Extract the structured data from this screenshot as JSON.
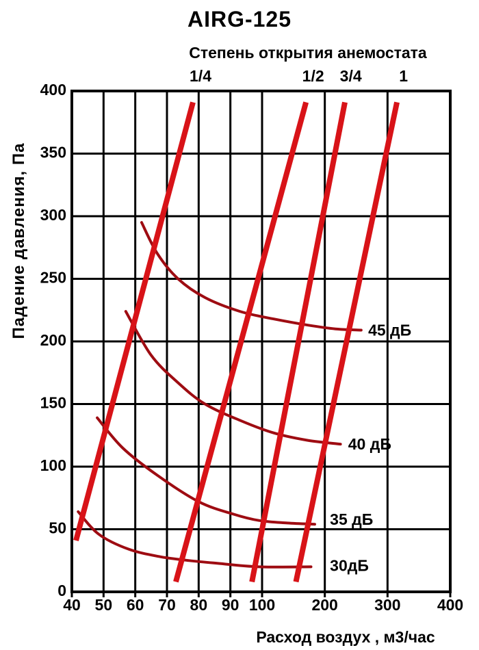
{
  "title": "AIRG-125",
  "top_axis": {
    "title": "Степень открытия анемостата",
    "ticks": [
      {
        "label": "1/4",
        "flow": 79.5
      },
      {
        "label": "1/2",
        "flow": 176
      },
      {
        "label": "3/4",
        "flow": 236
      },
      {
        "label": "1",
        "flow": 320
      }
    ]
  },
  "x_axis": {
    "title": "Расход воздух , м3/час",
    "ticks": [
      40,
      50,
      60,
      70,
      80,
      90,
      100,
      200,
      300,
      400
    ]
  },
  "y_axis": {
    "title": "Падение давления, Па",
    "ticks": [
      0,
      50,
      100,
      150,
      200,
      250,
      300,
      350,
      400
    ]
  },
  "chart_data": {
    "type": "line",
    "title": "AIRG-125",
    "xlabel": "Расход воздух , м3/час",
    "ylabel": "Падение давления, Па",
    "top_label": "Степень открытия анемостата",
    "xlim": [
      40,
      400
    ],
    "ylim": [
      0,
      400
    ],
    "grid": true,
    "x_scale": "piecewise-linear pseudo-log: 40-100 by 10, 100-400 by 100",
    "x_ticks": [
      40,
      50,
      60,
      70,
      80,
      90,
      100,
      200,
      300,
      400
    ],
    "y_ticks": [
      0,
      50,
      100,
      150,
      200,
      250,
      300,
      350,
      400
    ],
    "opening_lines": [
      {
        "name": "1/4",
        "points": [
          [
            41.3,
            41
          ],
          [
            78.2,
            391
          ]
        ]
      },
      {
        "name": "1/2",
        "points": [
          [
            72.8,
            8
          ],
          [
            170,
            391
          ]
        ]
      },
      {
        "name": "3/4",
        "points": [
          [
            96.8,
            8
          ],
          [
            232,
            391
          ]
        ]
      },
      {
        "name": "1",
        "points": [
          [
            154,
            8
          ],
          [
            315,
            391
          ]
        ]
      }
    ],
    "noise_curves": [
      {
        "name": "45 дБ",
        "label_at": [
          267,
          208
        ],
        "points": [
          [
            62,
            295
          ],
          [
            67,
            270
          ],
          [
            73.5,
            250
          ],
          [
            82,
            235
          ],
          [
            93,
            224
          ],
          [
            118,
            218
          ],
          [
            173,
            213
          ],
          [
            217,
            210
          ],
          [
            258,
            209
          ]
        ]
      },
      {
        "name": "40 дБ",
        "label_at": [
          235,
          117
        ],
        "points": [
          [
            57,
            224
          ],
          [
            65,
            189
          ],
          [
            73.5,
            167
          ],
          [
            82,
            150
          ],
          [
            93,
            137
          ],
          [
            118,
            127
          ],
          [
            173,
            121
          ],
          [
            225,
            118
          ]
        ]
      },
      {
        "name": "35 дБ",
        "label_at": [
          206,
          57
        ],
        "points": [
          [
            48,
            139
          ],
          [
            56,
            115
          ],
          [
            67,
            93
          ],
          [
            80,
            72
          ],
          [
            91,
            62
          ],
          [
            99,
            57
          ],
          [
            140,
            55
          ],
          [
            184,
            54
          ]
        ]
      },
      {
        "name": "30дБ",
        "label_at": [
          206,
          20
        ],
        "points": [
          [
            42,
            64
          ],
          [
            48.5,
            46
          ],
          [
            58,
            34
          ],
          [
            68,
            28
          ],
          [
            77,
            25
          ],
          [
            85,
            23
          ],
          [
            99,
            20
          ],
          [
            178,
            20
          ]
        ]
      }
    ],
    "colors": {
      "opening_line": "#d81318",
      "noise_curve": "#9e0c12",
      "grid": "#000000",
      "background": "#ffffff"
    }
  }
}
